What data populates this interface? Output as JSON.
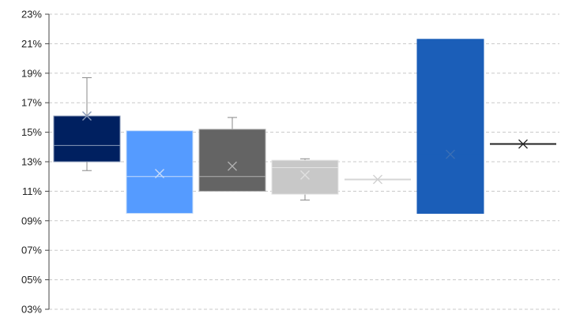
{
  "chart_data": {
    "type": "box",
    "title": "",
    "xlabel": "",
    "ylabel": "",
    "ylim": [
      3,
      23
    ],
    "y_unit": "%",
    "y_ticks": [
      "23%",
      "21%",
      "19%",
      "17%",
      "15%",
      "13%",
      "11%",
      "09%",
      "07%",
      "05%",
      "03%"
    ],
    "grid": true,
    "legend": "none",
    "series": [
      {
        "q1": 13.0,
        "median": 14.1,
        "q3": 16.1,
        "whisker_low": 12.4,
        "whisker_high": 18.7,
        "mean": 16.1,
        "color": "#002060",
        "median_color": "#8a9ab8",
        "whisker_color": "#888888",
        "mean_color": "#8a9ab8"
      },
      {
        "q1": 9.5,
        "median": 12.0,
        "q3": 15.1,
        "whisker_low": 9.5,
        "whisker_high": 15.1,
        "mean": 12.2,
        "color": "#559bff",
        "median_color": "#c6dcfa",
        "whisker_color": "#888888",
        "mean_color": "#c6dcfa"
      },
      {
        "q1": 11.0,
        "median": 12.0,
        "q3": 15.2,
        "whisker_low": 11.0,
        "whisker_high": 16.0,
        "mean": 12.7,
        "color": "#646464",
        "median_color": "#b0b0b0",
        "whisker_color": "#888888",
        "mean_color": "#b0b0b0"
      },
      {
        "q1": 10.8,
        "median": 12.6,
        "q3": 13.1,
        "whisker_low": 10.4,
        "whisker_high": 13.2,
        "mean": 12.1,
        "color": "#c8c8c8",
        "median_color": "#e4e4e4",
        "whisker_color": "#888888",
        "mean_color": "#e0e0e0"
      },
      {
        "q1": 11.8,
        "median": 11.8,
        "q3": 11.8,
        "whisker_low": 11.8,
        "whisker_high": 11.8,
        "mean": 11.8,
        "color": "#d6d6d6",
        "median_color": "#d6d6d6",
        "whisker_color": "#d6d6d6",
        "mean_color": "#cfcfcf"
      },
      {
        "q1": 9.5,
        "median": 13.5,
        "q3": 21.3,
        "whisker_low": 9.5,
        "whisker_high": 21.3,
        "mean": 13.5,
        "color": "#1b5eb8",
        "median_color": "#1b5eb8",
        "whisker_color": "#888888",
        "mean_color": "#3a6fb5"
      },
      {
        "q1": 14.2,
        "median": 14.2,
        "q3": 14.2,
        "whisker_low": 14.2,
        "whisker_high": 14.2,
        "mean": 14.2,
        "color": "#222222",
        "median_color": "#222222",
        "whisker_color": "#222222",
        "mean_color": "#222222"
      }
    ]
  }
}
